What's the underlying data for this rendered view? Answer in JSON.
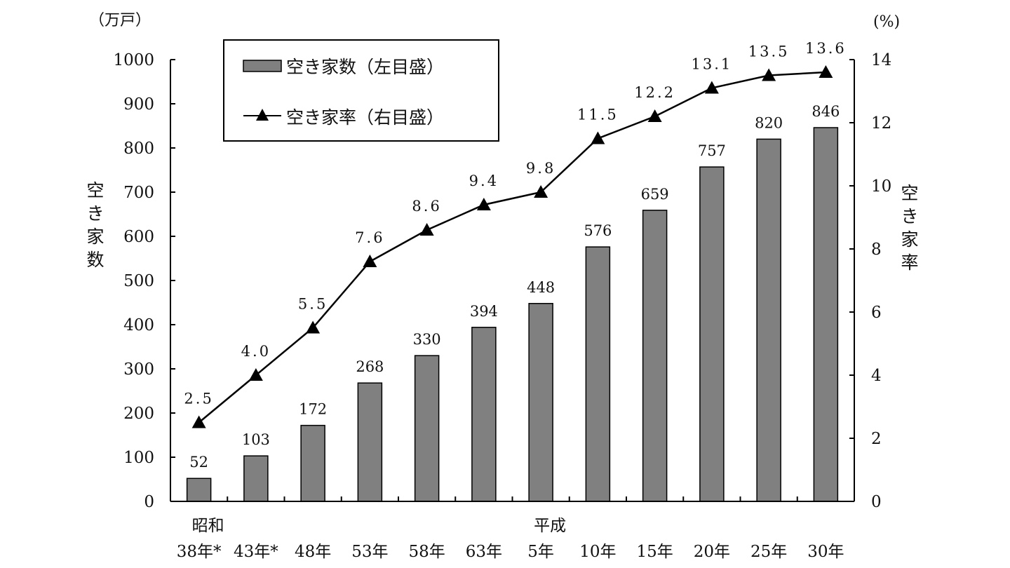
{
  "chart_data": {
    "type": "bar+line",
    "title": "",
    "categories": [
      "昭和 38年*",
      "43年*",
      "48年",
      "53年",
      "58年",
      "63年",
      "平成 5年",
      "10年",
      "15年",
      "20年",
      "25年",
      "30年"
    ],
    "era_labels": [
      {
        "label": "昭和",
        "category_index": 0
      },
      {
        "label": "平成",
        "category_index": 6
      }
    ],
    "category_labels": [
      "38年*",
      "43年*",
      "48年",
      "53年",
      "58年",
      "63年",
      "5年",
      "10年",
      "15年",
      "20年",
      "25年",
      "30年"
    ],
    "series": [
      {
        "name": "空き家数（左目盛）",
        "type": "bar",
        "axis": "left",
        "color": "#808080",
        "values": [
          52,
          103,
          172,
          268,
          330,
          394,
          448,
          576,
          659,
          757,
          820,
          846
        ],
        "labels": [
          "52",
          "103",
          "172",
          "268",
          "330",
          "394",
          "448",
          "576",
          "659",
          "757",
          "820",
          "846"
        ]
      },
      {
        "name": "空き家率（右目盛）",
        "type": "line",
        "axis": "right",
        "marker": "triangle",
        "color": "#000000",
        "values": [
          2.5,
          4.0,
          5.5,
          7.6,
          8.6,
          9.4,
          9.8,
          11.5,
          12.2,
          13.1,
          13.5,
          13.6
        ],
        "labels": [
          "2.5",
          "4.0",
          "5.5",
          "7.6",
          "8.6",
          "9.4",
          "9.8",
          "11.5",
          "12.2",
          "13.1",
          "13.5",
          "13.6"
        ]
      }
    ],
    "left_axis": {
      "unit": "（万戸）",
      "label": "空き家数",
      "ylim": [
        0,
        1000
      ],
      "ticks": [
        "0",
        "100",
        "200",
        "300",
        "400",
        "500",
        "600",
        "700",
        "800",
        "900",
        "1000"
      ]
    },
    "right_axis": {
      "unit": "(%)",
      "label": "空き家率",
      "ylim": [
        0,
        14
      ],
      "ticks": [
        "0",
        "2",
        "4",
        "6",
        "8",
        "10",
        "12",
        "14"
      ]
    },
    "legend": {
      "position": "upper-left inside",
      "entries": [
        "空き家数（左目盛）",
        "空き家率（右目盛）"
      ]
    },
    "grid": false
  }
}
